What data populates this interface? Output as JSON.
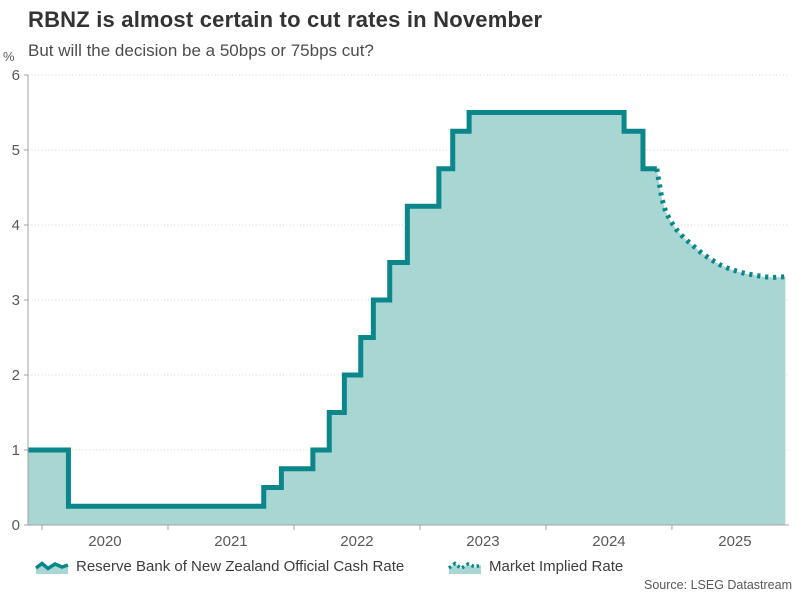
{
  "header": {
    "title": "RBNZ is almost certain to cut rates in November",
    "subtitle": "But will the decision be a 50bps or 75bps cut?"
  },
  "chart_data": {
    "type": "area",
    "title": "RBNZ is almost certain to cut rates in November",
    "subtitle": "But will the decision be a 50bps or 75bps cut?",
    "ylabel": "%",
    "ylim": [
      0,
      6
    ],
    "y_ticks": [
      0,
      1,
      2,
      3,
      4,
      5,
      6
    ],
    "x_domain": [
      2019.889,
      2025.929
    ],
    "x_ticks": [
      2020,
      2021,
      2022,
      2023,
      2024,
      2025
    ],
    "x_tick_labels": [
      "2020",
      "2021",
      "2022",
      "2023",
      "2024",
      "2025"
    ],
    "grid": "dotted-horizontal-gridlines",
    "legend_position": "bottom",
    "series": [
      {
        "name": "Reserve Bank of New Zealand Official Cash Rate",
        "style": "solid-step",
        "points": [
          [
            2019.889,
            1.0
          ],
          [
            2020.21,
            0.25
          ],
          [
            2021.76,
            0.5
          ],
          [
            2021.9,
            0.75
          ],
          [
            2022.15,
            1.0
          ],
          [
            2022.28,
            1.5
          ],
          [
            2022.4,
            2.0
          ],
          [
            2022.53,
            2.5
          ],
          [
            2022.63,
            3.0
          ],
          [
            2022.76,
            3.5
          ],
          [
            2022.9,
            4.25
          ],
          [
            2023.15,
            4.75
          ],
          [
            2023.26,
            5.25
          ],
          [
            2023.39,
            5.5
          ],
          [
            2024.62,
            5.25
          ],
          [
            2024.77,
            4.75
          ]
        ],
        "end_x": 2024.88
      },
      {
        "name": "Market Implied Rate",
        "style": "dotted-line",
        "points": [
          [
            2024.88,
            4.75
          ],
          [
            2024.9,
            4.55
          ],
          [
            2024.92,
            4.35
          ],
          [
            2024.95,
            4.18
          ],
          [
            2024.99,
            4.05
          ],
          [
            2025.04,
            3.93
          ],
          [
            2025.1,
            3.82
          ],
          [
            2025.17,
            3.72
          ],
          [
            2025.24,
            3.62
          ],
          [
            2025.31,
            3.54
          ],
          [
            2025.38,
            3.47
          ],
          [
            2025.45,
            3.42
          ],
          [
            2025.52,
            3.38
          ],
          [
            2025.59,
            3.35
          ],
          [
            2025.66,
            3.33
          ],
          [
            2025.73,
            3.31
          ],
          [
            2025.8,
            3.3
          ],
          [
            2025.9,
            3.31
          ]
        ]
      }
    ],
    "colors": {
      "line": "#0b868b",
      "fill": "#a8d6d2",
      "grid": "#d4d4d4",
      "axis": "#a3a3a3",
      "tick_text": "#595959"
    }
  },
  "legend": {
    "items": [
      {
        "label": "Reserve Bank of New Zealand Official Cash Rate"
      },
      {
        "label": "Market Implied Rate"
      }
    ]
  },
  "footer": {
    "source": "Source: LSEG Datastream"
  }
}
